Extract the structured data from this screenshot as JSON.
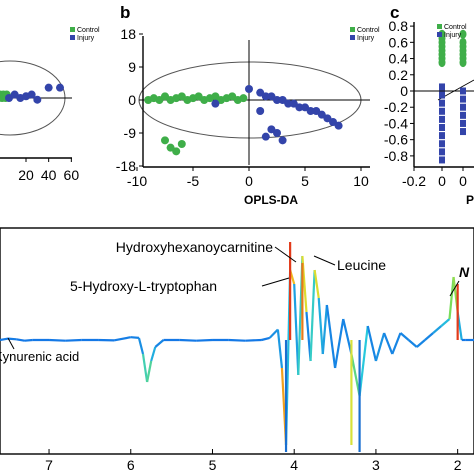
{
  "figure": {
    "panels": [
      {
        "id": "a",
        "legend": [
          "Control",
          "Injury"
        ],
        "x_ticks": [
          "20",
          "40",
          "60"
        ],
        "colors": {
          "control": "#3fae49",
          "injury": "#3344aa"
        }
      },
      {
        "id": "b",
        "letter": "b",
        "legend": [
          "Control",
          "Injury"
        ],
        "x_ticks": [
          "-10",
          "-5",
          "0",
          "5",
          "10"
        ],
        "y_ticks": [
          "18",
          "9",
          "0",
          "-9",
          "-18"
        ],
        "x_title": "OPLS-DA"
      },
      {
        "id": "c",
        "letter": "c",
        "legend": [
          "Control",
          "Injury"
        ],
        "x_ticks": [
          "-0.2",
          "0",
          "0",
          "0"
        ],
        "y_ticks": [
          "0.8",
          "0.6",
          "0.4",
          "0.2",
          "0",
          "-0.2",
          "-0.4",
          "-0.6",
          "-0.8"
        ],
        "x_title": "P"
      }
    ],
    "spectrum": {
      "x_ticks": [
        "7",
        "6",
        "5",
        "4",
        "3",
        "2"
      ],
      "annotations": [
        "Hydroxyhexanoycarnitine",
        "Leucine",
        "5-Hydroxy-L-tryptophan",
        "Kynurenic acid",
        "N"
      ]
    }
  },
  "chart_data": [
    {
      "type": "scatter",
      "series": [
        {
          "name": "Control",
          "x": [
            -5,
            -4,
            -3,
            -2,
            -1,
            0,
            1,
            2,
            3
          ],
          "y": [
            1,
            0,
            1,
            0.5,
            0,
            1,
            0.5,
            0,
            1
          ]
        },
        {
          "name": "Injury",
          "x": [
            5,
            10,
            15,
            20,
            25,
            30,
            40,
            50
          ],
          "y": [
            0,
            1,
            0,
            0.5,
            1,
            -0.5,
            3,
            3
          ]
        }
      ],
      "xlim": [
        -10,
        65
      ],
      "ylim": [
        -18,
        18
      ]
    },
    {
      "type": "scatter",
      "series": [
        {
          "name": "Control",
          "x": [
            -9,
            -8.5,
            -8,
            -7.5,
            -7,
            -6.5,
            -6,
            -5.5,
            -5,
            -4.5,
            -4,
            -3.5,
            -3,
            -2.5,
            -2,
            -1.5,
            -1,
            -0.5,
            -6.5,
            -7,
            -7.5,
            -6
          ],
          "y": [
            0,
            0.5,
            0,
            1,
            0,
            0.5,
            1,
            0,
            0.5,
            1,
            0,
            0.5,
            1,
            0,
            0.5,
            1,
            0,
            0.5,
            -14,
            -13,
            -11,
            -12
          ]
        },
        {
          "name": "Injury",
          "x": [
            0,
            1,
            1.5,
            2,
            2.5,
            3,
            3.5,
            4,
            4.5,
            5,
            5.5,
            6,
            6.5,
            7,
            7.5,
            8,
            2,
            1.5,
            2.5,
            3,
            1,
            -3
          ],
          "y": [
            3,
            2,
            1,
            1,
            0,
            0,
            -1,
            -1,
            -2,
            -2,
            -3,
            -3,
            -4,
            -5,
            -6,
            -7,
            -8,
            -10,
            -9,
            -11,
            -3,
            -1
          ]
        }
      ],
      "x_ticks": [
        -10,
        -5,
        0,
        5,
        10
      ],
      "y_ticks": [
        18,
        9,
        0,
        -9,
        -18
      ],
      "xlim": [
        -13,
        11
      ],
      "ylim": [
        -18,
        18
      ],
      "xlabel": "OPLS-DA"
    },
    {
      "type": "scatter",
      "series": [
        {
          "name": "Control",
          "x": [
            0,
            0,
            0,
            0,
            0,
            0,
            0,
            0,
            0.1,
            0.1,
            0.1,
            0.1,
            0.1,
            0.1,
            0.1
          ],
          "y": [
            0.7,
            0.65,
            0.6,
            0.55,
            0.5,
            0.45,
            0.4,
            0.35,
            0.7,
            0.6,
            0.55,
            0.5,
            0.45,
            0.4,
            0.35
          ]
        },
        {
          "name": "Injury",
          "x": [
            0,
            0,
            0,
            0,
            0,
            0,
            0,
            0,
            0,
            0,
            0.1,
            0.1,
            0.1,
            0.1,
            0.1,
            0.1
          ],
          "y": [
            0.05,
            -0.05,
            -0.15,
            -0.25,
            -0.35,
            -0.45,
            -0.55,
            -0.65,
            -0.75,
            -0.85,
            0,
            -0.1,
            -0.2,
            -0.3,
            -0.4,
            -0.5
          ]
        }
      ],
      "xlim": [
        -0.25,
        0.3
      ],
      "ylim": [
        -0.9,
        0.9
      ]
    },
    {
      "type": "line",
      "x_ticks": [
        7,
        6,
        5,
        4,
        3,
        2
      ],
      "xlim": [
        7.6,
        1.8
      ],
      "x": [
        7.6,
        7.5,
        7.4,
        7.3,
        7.2,
        7.0,
        6.8,
        6.6,
        6.4,
        6.2,
        6.0,
        5.9,
        5.85,
        5.8,
        5.75,
        5.7,
        5.6,
        5.4,
        5.2,
        5.0,
        4.8,
        4.6,
        4.4,
        4.3,
        4.2,
        4.15,
        4.1,
        4.05,
        4.0,
        3.95,
        3.9,
        3.85,
        3.8,
        3.75,
        3.7,
        3.65,
        3.6,
        3.5,
        3.4,
        3.3,
        3.2,
        3.1,
        3.0,
        2.9,
        2.8,
        2.7,
        2.6,
        2.5,
        2.4,
        2.3,
        2.2,
        2.1,
        2.05,
        2.0,
        1.95,
        1.9,
        1.8
      ],
      "values": [
        0,
        0.2,
        0.1,
        -0.1,
        0,
        0,
        -0.1,
        0,
        0,
        -0.05,
        0.4,
        0.3,
        -2,
        -6,
        -3,
        -1,
        0,
        0,
        -0.1,
        0,
        0,
        -0.1,
        0,
        0.3,
        1.5,
        -4,
        -15,
        10,
        8,
        -5,
        12,
        4,
        -3,
        10,
        6,
        -2,
        5,
        -4,
        3,
        -2,
        -8,
        2,
        -3,
        1,
        -2,
        1,
        0,
        -1,
        0,
        1,
        2,
        3,
        9,
        4,
        0,
        0,
        0
      ]
    }
  ]
}
